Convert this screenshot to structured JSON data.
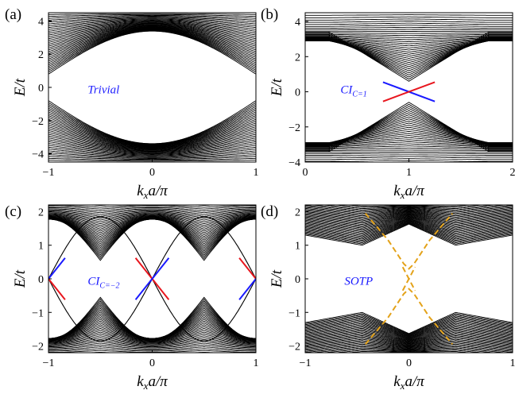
{
  "chart_data": [
    {
      "type": "line",
      "panel": "(a)",
      "xlabel": "k_x a/π",
      "ylabel": "E/t",
      "xlim": [
        -1,
        1
      ],
      "ylim": [
        -4.5,
        4.5
      ],
      "xticks": [
        -1,
        0,
        1
      ],
      "yticks": [
        -4,
        -2,
        0,
        2,
        4
      ],
      "annotation": "Trivial",
      "model": {
        "kind": "trivial",
        "gap": 0.8,
        "band_top": 4.4,
        "n_bands": 34,
        "k_offset": 0
      },
      "edge_states": []
    },
    {
      "type": "line",
      "panel": "(b)",
      "xlabel": "k_x a/π",
      "ylabel": "E/t",
      "xlim": [
        0,
        2
      ],
      "ylim": [
        -4,
        4.5
      ],
      "xticks": [
        0,
        1,
        2
      ],
      "yticks": [
        -4,
        -2,
        0,
        2,
        4
      ],
      "annotation": "CIₕ",
      "annotation_sub": "C=1",
      "model": {
        "kind": "chern",
        "gap": 0.0,
        "band_top": 3.4,
        "band_edge_far": 3.4,
        "dip_center": 1,
        "n_bands": 34
      },
      "edge_states": [
        {
          "color": "#1a1aff",
          "points": [
            [
              0.75,
              0.55
            ],
            [
              1.25,
              -0.55
            ]
          ]
        },
        {
          "color": "#e8161e",
          "points": [
            [
              0.75,
              -0.55
            ],
            [
              1.25,
              0.55
            ]
          ]
        }
      ]
    },
    {
      "type": "line",
      "panel": "(c)",
      "xlabel": "k_x a/π",
      "ylabel": "E/t",
      "xlim": [
        -1,
        1
      ],
      "ylim": [
        -2.2,
        2.2
      ],
      "xticks": [
        -1,
        0,
        1
      ],
      "yticks": [
        -2,
        -1,
        0,
        1,
        2
      ],
      "annotation": "CI",
      "annotation_sub": "C=−2",
      "model": {
        "kind": "chern2",
        "n_bands": 34
      },
      "isolated_band": {
        "peak": 1.85,
        "kmax": 0.5
      },
      "edge_states": [
        {
          "color": "#1a1aff",
          "points": [
            [
              -1,
              0
            ],
            [
              -0.84,
              0.62
            ]
          ]
        },
        {
          "color": "#e8161e",
          "points": [
            [
              -1,
              0
            ],
            [
              -0.84,
              -0.62
            ]
          ]
        },
        {
          "color": "#e8161e",
          "points": [
            [
              -0.16,
              0.62
            ],
            [
              0.16,
              -0.62
            ]
          ]
        },
        {
          "color": "#1a1aff",
          "points": [
            [
              -0.16,
              -0.62
            ],
            [
              0.16,
              0.62
            ]
          ]
        },
        {
          "color": "#e8161e",
          "points": [
            [
              1,
              0
            ],
            [
              0.84,
              0.62
            ]
          ]
        },
        {
          "color": "#1a1aff",
          "points": [
            [
              1,
              0
            ],
            [
              0.84,
              -0.62
            ]
          ]
        }
      ]
    },
    {
      "type": "line",
      "panel": "(d)",
      "xlabel": "k_x a/π",
      "ylabel": "E/t",
      "xlim": [
        -1,
        1
      ],
      "ylim": [
        -2.2,
        2.2
      ],
      "xticks": [
        -1,
        0,
        1
      ],
      "yticks": [
        -2,
        -1,
        0,
        1,
        2
      ],
      "annotation": "SOTP",
      "model": {
        "kind": "sotp",
        "n_bands": 34
      },
      "edge_states": [
        {
          "color": "#e3a21a",
          "dashed": true,
          "points": [
            [
              -0.42,
              1.95
            ],
            [
              -0.2,
              1.15
            ],
            [
              -0.05,
              0.45
            ],
            [
              0,
              0.3
            ],
            [
              0.05,
              0.45
            ],
            [
              0.2,
              1.15
            ],
            [
              0.42,
              1.95
            ]
          ]
        },
        {
          "color": "#e3a21a",
          "dashed": true,
          "points": [
            [
              -0.42,
              -1.95
            ],
            [
              -0.2,
              -1.15
            ],
            [
              -0.05,
              -0.45
            ],
            [
              0,
              -0.3
            ],
            [
              0.05,
              -0.45
            ],
            [
              0.2,
              -1.15
            ],
            [
              0.42,
              -1.95
            ]
          ]
        },
        {
          "color": "#e3a21a",
          "dashed": true,
          "points": [
            [
              -0.06,
              -0.35
            ],
            [
              0.06,
              0.35
            ]
          ]
        },
        {
          "color": "#e3a21a",
          "dashed": true,
          "points": [
            [
              -0.06,
              0.35
            ],
            [
              0.06,
              -0.35
            ]
          ]
        }
      ]
    }
  ]
}
